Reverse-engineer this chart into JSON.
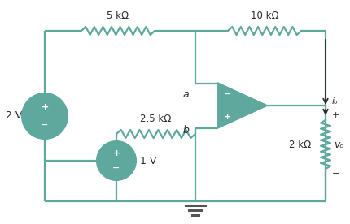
{
  "bg_color": "#ffffff",
  "teal_color": "#5fa89e",
  "text_color": "#2a2a2a",
  "arrow_color": "#2a2a2a",
  "fig_width": 4.3,
  "fig_height": 2.76,
  "dpi": 100,
  "labels": {
    "R1": "5 kΩ",
    "R2": "2.5 kΩ",
    "R3": "10 kΩ",
    "R4": "2 kΩ",
    "V1": "2 V",
    "V2": "1 V",
    "node_a": "a",
    "node_b": "b",
    "io": "iₒ",
    "vo": "vₒ"
  }
}
